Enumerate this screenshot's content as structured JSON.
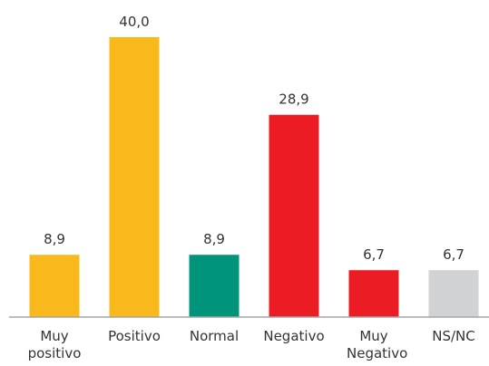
{
  "chart_data": {
    "type": "bar",
    "categories": [
      "Muy positivo",
      "Positivo",
      "Normal",
      "Negativo",
      "Muy Negativo",
      "NS/NC"
    ],
    "values": [
      8.9,
      40.0,
      8.9,
      28.9,
      6.7,
      6.7
    ],
    "value_labels": [
      "8,9",
      "40,0",
      "8,9",
      "28,9",
      "6,7",
      "6,7"
    ],
    "colors": [
      "#f9b81b",
      "#f9b81b",
      "#00957a",
      "#ec1c24",
      "#ec1c24",
      "#d1d2d4"
    ],
    "ylim": [
      0,
      40
    ]
  }
}
